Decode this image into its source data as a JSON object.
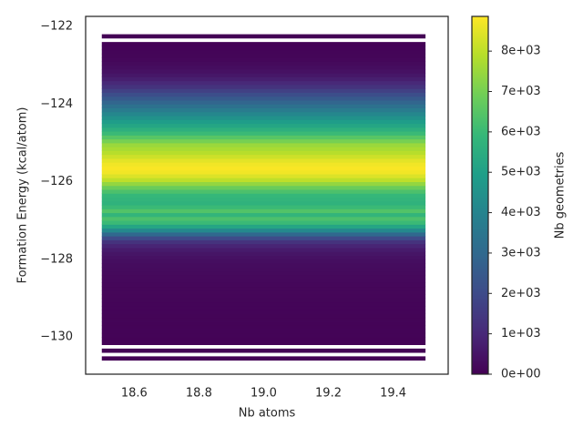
{
  "chart_data": {
    "type": "heatmap",
    "x_label": "Nb atoms",
    "y_label": "Formation Energy (kcal/atom)",
    "colorbar_label": "Nb geometries",
    "colormap": "viridis",
    "xbins": [
      18.5,
      19.5
    ],
    "ybins": [
      -130.6,
      -130.5,
      -130.4,
      -130.3,
      -130.2,
      -130.1,
      -130.0,
      -129.9,
      -129.8,
      -129.7,
      -129.6,
      -129.5,
      -129.4,
      -129.3,
      -129.2,
      -129.1,
      -129.0,
      -128.9,
      -128.8,
      -128.7,
      -128.6,
      -128.5,
      -128.4,
      -128.3,
      -128.2,
      -128.1,
      -128.0,
      -127.9,
      -127.8,
      -127.7,
      -127.6,
      -127.5,
      -127.4,
      -127.3,
      -127.2,
      -127.1,
      -127.0,
      -126.9,
      -126.8,
      -126.7,
      -126.6,
      -126.5,
      -126.4,
      -126.3,
      -126.2,
      -126.1,
      -126.0,
      -125.9,
      -125.8,
      -125.7,
      -125.6,
      -125.5,
      -125.4,
      -125.3,
      -125.2,
      -125.1,
      -125.0,
      -124.9,
      -124.8,
      -124.7,
      -124.6,
      -124.5,
      -124.4,
      -124.3,
      -124.2,
      -124.1,
      -124.0,
      -123.9,
      -123.8,
      -123.7,
      -123.6,
      -123.5,
      -123.4,
      -123.3,
      -123.2,
      -123.1,
      -123.0,
      -122.9,
      -122.8,
      -122.7,
      -122.6,
      -122.5,
      -122.4,
      -122.3,
      -122.2
    ],
    "values": [
      30,
      null,
      40,
      null,
      60,
      60,
      70,
      70,
      80,
      80,
      90,
      90,
      100,
      100,
      110,
      120,
      130,
      140,
      150,
      160,
      180,
      200,
      220,
      250,
      280,
      320,
      400,
      500,
      650,
      900,
      1300,
      2000,
      3000,
      4200,
      5200,
      6000,
      6300,
      5800,
      6400,
      6000,
      5700,
      5800,
      5900,
      6300,
      6800,
      7400,
      8000,
      8400,
      8700,
      8800,
      8700,
      8500,
      8200,
      7900,
      7700,
      7500,
      7000,
      6500,
      6000,
      5600,
      5200,
      4900,
      4500,
      4100,
      3700,
      3300,
      2900,
      2500,
      2100,
      1700,
      1300,
      1000,
      750,
      550,
      400,
      300,
      220,
      160,
      120,
      100,
      80,
      60,
      null,
      20
    ],
    "xlim": [
      18.45,
      19.57
    ],
    "ylim": [
      -130.96,
      -121.74
    ],
    "xticks": [
      18.6,
      18.8,
      {
        "value": 19,
        "label": "19.0"
      },
      19.2,
      19.4
    ],
    "yticks": [
      {
        "value": -130,
        "label": "−130"
      },
      {
        "value": -128,
        "label": "−128"
      },
      {
        "value": -126,
        "label": "−126"
      },
      {
        "value": -124,
        "label": "−124"
      },
      {
        "value": -122,
        "label": "−122"
      }
    ],
    "clim": [
      0,
      8860
    ],
    "cticks": [
      {
        "value": 0,
        "label": "0e+00"
      },
      {
        "value": 1000,
        "label": "1e+03"
      },
      {
        "value": 2000,
        "label": "2e+03"
      },
      {
        "value": 3000,
        "label": "3e+03"
      },
      {
        "value": 4000,
        "label": "4e+03"
      },
      {
        "value": 5000,
        "label": "5e+03"
      },
      {
        "value": 6000,
        "label": "6e+03"
      },
      {
        "value": 7000,
        "label": "7e+03"
      },
      {
        "value": 8000,
        "label": "8e+03"
      }
    ]
  }
}
